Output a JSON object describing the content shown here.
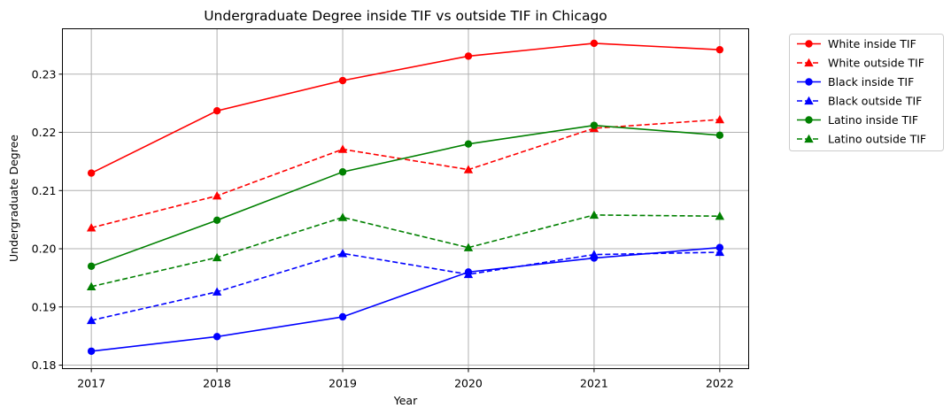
{
  "chart_data": {
    "type": "line",
    "title": "Undergraduate Degree inside TIF vs outside TIF in Chicago",
    "xlabel": "Year",
    "ylabel": "Undergraduate Degree",
    "x": [
      "2017",
      "2018",
      "2019",
      "2020",
      "2021",
      "2022"
    ],
    "xlim": [
      2016.77,
      2022.23
    ],
    "ylim": [
      0.1794,
      0.2378
    ],
    "yticks": [
      "0.18",
      "0.19",
      "0.20",
      "0.21",
      "0.22",
      "0.23"
    ],
    "grid": true,
    "legend_position": "outside-top-right",
    "series": [
      {
        "name": "White inside TIF",
        "color": "#ff0000",
        "dash": false,
        "marker": "circle",
        "values": [
          0.213,
          0.2237,
          0.2289,
          0.2331,
          0.2353,
          0.2342
        ]
      },
      {
        "name": "White outside TIF",
        "color": "#ff0000",
        "dash": true,
        "marker": "triangle",
        "values": [
          0.2036,
          0.2091,
          0.2171,
          0.2136,
          0.2207,
          0.2222
        ]
      },
      {
        "name": "Black inside TIF",
        "color": "#0000ff",
        "dash": false,
        "marker": "circle",
        "values": [
          0.1824,
          0.1849,
          0.1883,
          0.196,
          0.1984,
          0.2002
        ]
      },
      {
        "name": "Black outside TIF",
        "color": "#0000ff",
        "dash": true,
        "marker": "triangle",
        "values": [
          0.1877,
          0.1926,
          0.1992,
          0.1956,
          0.199,
          0.1994
        ]
      },
      {
        "name": "Latino inside TIF",
        "color": "#008000",
        "dash": false,
        "marker": "circle",
        "values": [
          0.197,
          0.2049,
          0.2132,
          0.218,
          0.2212,
          0.2195
        ]
      },
      {
        "name": "Latino outside TIF",
        "color": "#008000",
        "dash": true,
        "marker": "triangle",
        "values": [
          0.1935,
          0.1985,
          0.2054,
          0.2002,
          0.2058,
          0.2056
        ]
      }
    ]
  }
}
